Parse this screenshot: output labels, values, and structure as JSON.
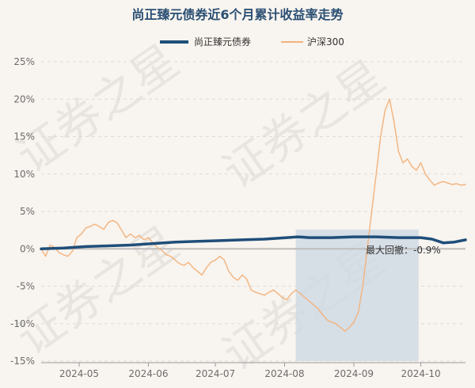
{
  "chart_data": {
    "type": "line",
    "title": "尚正臻元债券近6个月累计收益率走势",
    "xlabel": "",
    "ylabel": "",
    "ylim": [
      -15,
      25
    ],
    "yticks": [
      -15,
      -10,
      -5,
      0,
      5,
      10,
      15,
      20,
      25
    ],
    "ytick_labels": [
      "-15%",
      "-10%",
      "-5%",
      "0%",
      "5%",
      "10%",
      "15%",
      "20%",
      "25%"
    ],
    "xtick_labels": [
      "2024-05",
      "2024-06",
      "2024-07",
      "2024-08",
      "2024-09",
      "2024-10"
    ],
    "xticks": [
      17,
      48,
      78,
      109,
      140,
      170
    ],
    "xlim": [
      0,
      190
    ],
    "grid": true,
    "legend_position": "top",
    "watermark": "证券之星",
    "series": [
      {
        "name": "尚正臻元债券",
        "color": "#1f4e79",
        "x": [
          0,
          10,
          20,
          30,
          40,
          50,
          60,
          70,
          80,
          90,
          100,
          110,
          115,
          120,
          130,
          140,
          150,
          160,
          165,
          170,
          175,
          180,
          185,
          190
        ],
        "values": [
          0.0,
          0.1,
          0.3,
          0.4,
          0.5,
          0.7,
          0.9,
          1.0,
          1.1,
          1.2,
          1.3,
          1.5,
          1.6,
          1.5,
          1.5,
          1.6,
          1.6,
          1.5,
          1.5,
          1.5,
          1.3,
          0.8,
          0.9,
          1.2
        ]
      },
      {
        "name": "沪深300",
        "color": "#f2b37d",
        "x": [
          0,
          2,
          4,
          6,
          8,
          10,
          12,
          14,
          16,
          18,
          20,
          22,
          24,
          26,
          28,
          30,
          32,
          34,
          36,
          38,
          40,
          42,
          44,
          46,
          48,
          50,
          52,
          54,
          56,
          58,
          60,
          62,
          64,
          66,
          68,
          70,
          72,
          74,
          76,
          78,
          80,
          82,
          84,
          86,
          88,
          90,
          92,
          94,
          96,
          98,
          100,
          102,
          104,
          106,
          108,
          110,
          112,
          114,
          116,
          118,
          120,
          122,
          124,
          126,
          128,
          130,
          132,
          134,
          136,
          138,
          140,
          142,
          144,
          146,
          148,
          150,
          152,
          154,
          156,
          158,
          160,
          162,
          164,
          166,
          168,
          170,
          172,
          174,
          176,
          178,
          180,
          182,
          184,
          186,
          188,
          190
        ],
        "values": [
          0.0,
          -1.0,
          0.5,
          0.2,
          -0.5,
          -0.8,
          -1.0,
          -0.3,
          1.5,
          2.0,
          2.8,
          3.0,
          3.3,
          3.0,
          2.6,
          3.5,
          3.8,
          3.5,
          2.5,
          1.5,
          2.0,
          1.5,
          1.8,
          1.2,
          1.5,
          0.8,
          0.2,
          -0.2,
          -0.8,
          -1.0,
          -1.5,
          -2.0,
          -2.2,
          -1.8,
          -2.5,
          -3.0,
          -3.5,
          -2.5,
          -1.8,
          -1.5,
          -1.0,
          -1.5,
          -3.0,
          -3.8,
          -4.2,
          -3.5,
          -4.0,
          -5.5,
          -5.8,
          -6.0,
          -6.2,
          -5.8,
          -5.5,
          -6.0,
          -6.5,
          -6.8,
          -6.0,
          -5.5,
          -6.0,
          -6.5,
          -7.0,
          -7.5,
          -8.0,
          -8.8,
          -9.5,
          -9.8,
          -10.0,
          -10.5,
          -11.0,
          -10.5,
          -9.8,
          -8.5,
          -5.0,
          0.0,
          5.0,
          10.0,
          15.0,
          18.5,
          20.0,
          17.0,
          13.0,
          11.5,
          12.0,
          11.0,
          10.5,
          11.5,
          10.0,
          9.2,
          8.5,
          8.8,
          9.0,
          8.8,
          8.6,
          8.7,
          8.5,
          8.6
        ]
      }
    ],
    "shaded_region": {
      "x_start": 114,
      "x_end": 169,
      "color": "#cdd8e3"
    },
    "annotation": {
      "text": "最大回撤：-0.9%"
    }
  }
}
